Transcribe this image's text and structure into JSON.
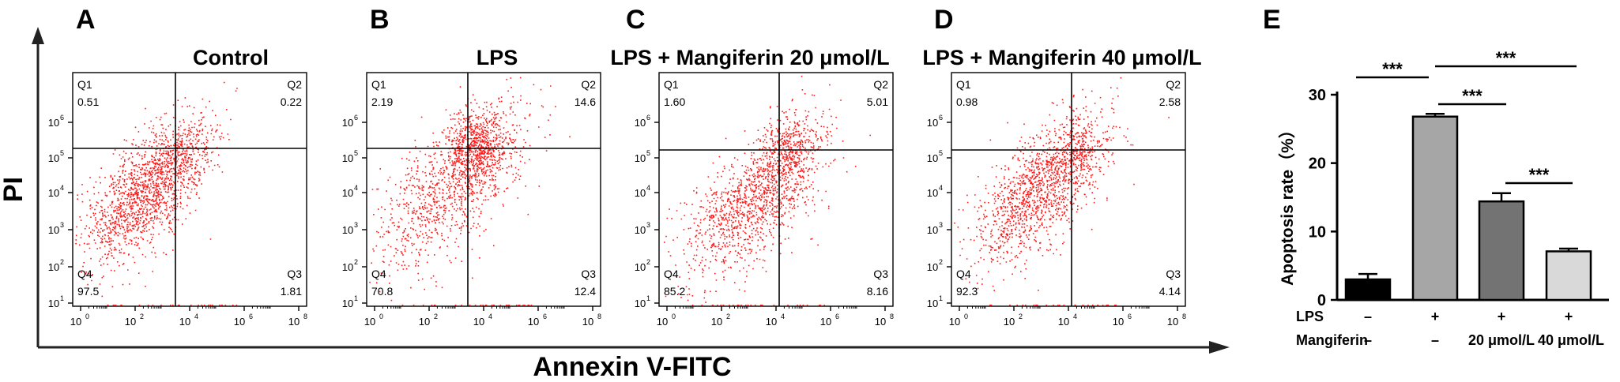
{
  "axes": {
    "y_label": "PI",
    "x_label": "Annexin V-FITC"
  },
  "panels": [
    {
      "letter": "A",
      "title": "Control",
      "quadrants": {
        "q1": {
          "name": "Q1",
          "value": "0.51"
        },
        "q2": {
          "name": "Q2",
          "value": "0.22"
        },
        "q3": {
          "name": "Q3",
          "value": "1.81"
        },
        "q4": {
          "name": "Q4",
          "value": "97.5"
        }
      }
    },
    {
      "letter": "B",
      "title": "LPS",
      "quadrants": {
        "q1": {
          "name": "Q1",
          "value": "2.19"
        },
        "q2": {
          "name": "Q2",
          "value": "14.6"
        },
        "q3": {
          "name": "Q3",
          "value": "12.4"
        },
        "q4": {
          "name": "Q4",
          "value": "70.8"
        }
      }
    },
    {
      "letter": "C",
      "title": "LPS + Mangiferin 20 μmol/L",
      "quadrants": {
        "q1": {
          "name": "Q1",
          "value": "1.60"
        },
        "q2": {
          "name": "Q2",
          "value": "5.01"
        },
        "q3": {
          "name": "Q3",
          "value": "8.16"
        },
        "q4": {
          "name": "Q4",
          "value": "85.2"
        }
      }
    },
    {
      "letter": "D",
      "title": "LPS + Mangiferin 40 μmol/L",
      "quadrants": {
        "q1": {
          "name": "Q1",
          "value": "0.98"
        },
        "q2": {
          "name": "Q2",
          "value": "2.58"
        },
        "q3": {
          "name": "Q3",
          "value": "4.14"
        },
        "q4": {
          "name": "Q4",
          "value": "92.3"
        }
      }
    }
  ],
  "flow_axis": {
    "x_ticks": [
      "10",
      "10",
      "10",
      "10",
      "10"
    ],
    "x_exps": [
      "0",
      "2",
      "4",
      "6",
      "8"
    ],
    "y_ticks": [
      "10",
      "10",
      "10",
      "10",
      "10",
      "10"
    ],
    "y_exps": [
      "1",
      "2",
      "3",
      "4",
      "5",
      "6"
    ]
  },
  "bar_panel": {
    "letter": "E",
    "row_labels": [
      "LPS",
      "Mangiferin"
    ],
    "lps_marks": [
      "–",
      "+",
      "+",
      "+"
    ],
    "mangiferin_marks": [
      "–",
      "–",
      "20 μmol/L",
      "40 μmol/L"
    ],
    "sig_label": "***"
  },
  "chart_data": {
    "type": "bar",
    "categories": [
      "Control",
      "LPS",
      "LPS + Mangiferin 20 μmol/L",
      "LPS + Mangiferin 40 μmol/L"
    ],
    "values": [
      3.0,
      26.8,
      14.4,
      7.1
    ],
    "errors": [
      0.8,
      0.4,
      1.2,
      0.4
    ],
    "colors": [
      "#000000",
      "#a6a6a6",
      "#737373",
      "#d9d9d9"
    ],
    "ylabel": "Apoptosis rate（%）",
    "ylim": [
      0,
      30
    ],
    "yticks": [
      "0",
      "10",
      "20",
      "30"
    ],
    "significance": [
      {
        "from": 0,
        "to": 1,
        "label": "***"
      },
      {
        "from": 1,
        "to": 2,
        "label": "***"
      },
      {
        "from": 1,
        "to": 3,
        "label": "***"
      },
      {
        "from": 2,
        "to": 3,
        "label": "***"
      }
    ]
  },
  "colors": {
    "dots": "#ff1a1a",
    "axis": "#000000"
  }
}
